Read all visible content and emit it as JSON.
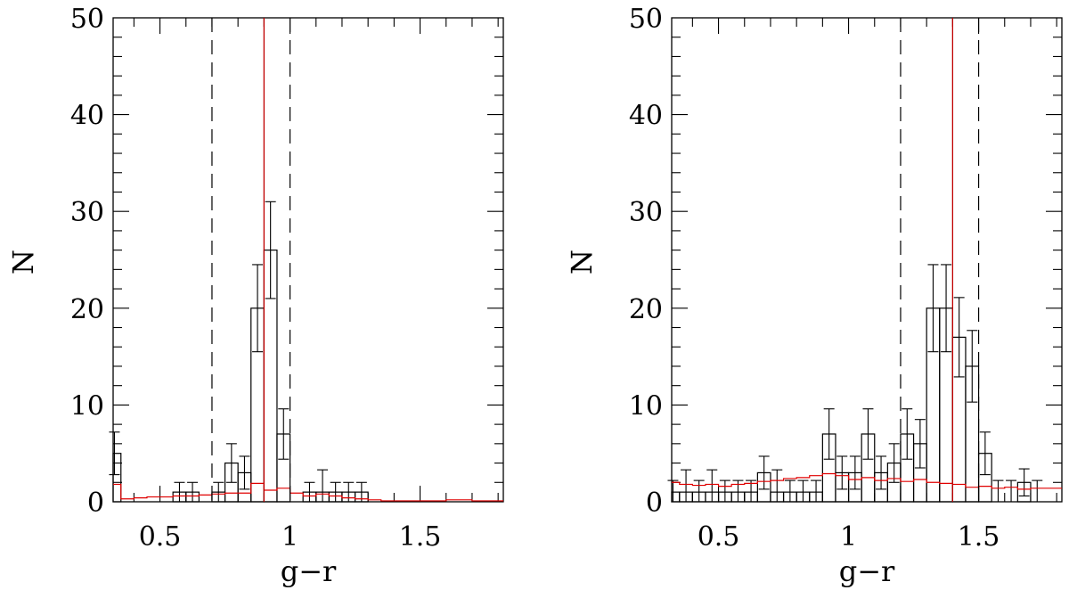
{
  "chart_data": [
    {
      "type": "histogram",
      "xlabel": "g−r",
      "ylabel": "N",
      "xlim": [
        0.32,
        1.82
      ],
      "ylim": [
        0,
        50
      ],
      "xticks": [
        0.5,
        1,
        1.5
      ],
      "xtick_labels": [
        "0.5",
        "1",
        "1.5"
      ],
      "yticks": [
        0,
        10,
        20,
        30,
        40,
        50
      ],
      "ytick_labels": [
        "0",
        "10",
        "20",
        "30",
        "40",
        "50"
      ],
      "bin_width": 0.05,
      "bins": [
        {
          "x0": 0.3,
          "x1": 0.35,
          "n": 5
        },
        {
          "x0": 0.35,
          "x1": 0.4,
          "n": 0
        },
        {
          "x0": 0.4,
          "x1": 0.45,
          "n": 0
        },
        {
          "x0": 0.45,
          "x1": 0.5,
          "n": 0
        },
        {
          "x0": 0.5,
          "x1": 0.55,
          "n": 0
        },
        {
          "x0": 0.55,
          "x1": 0.6,
          "n": 1
        },
        {
          "x0": 0.6,
          "x1": 0.65,
          "n": 1
        },
        {
          "x0": 0.65,
          "x1": 0.7,
          "n": 0
        },
        {
          "x0": 0.7,
          "x1": 0.75,
          "n": 1
        },
        {
          "x0": 0.75,
          "x1": 0.8,
          "n": 4
        },
        {
          "x0": 0.8,
          "x1": 0.85,
          "n": 3
        },
        {
          "x0": 0.85,
          "x1": 0.9,
          "n": 20
        },
        {
          "x0": 0.9,
          "x1": 0.95,
          "n": 26
        },
        {
          "x0": 0.95,
          "x1": 1.0,
          "n": 7
        },
        {
          "x0": 1.0,
          "x1": 1.05,
          "n": 0
        },
        {
          "x0": 1.05,
          "x1": 1.1,
          "n": 1
        },
        {
          "x0": 1.1,
          "x1": 1.15,
          "n": 1
        },
        {
          "x0": 1.15,
          "x1": 1.2,
          "n": 1
        },
        {
          "x0": 1.2,
          "x1": 1.25,
          "n": 1
        },
        {
          "x0": 1.25,
          "x1": 1.3,
          "n": 1
        },
        {
          "x0": 1.3,
          "x1": 1.35,
          "n": 0
        },
        {
          "x0": 1.35,
          "x1": 1.4,
          "n": 0
        }
      ],
      "errors": [
        {
          "x": 0.325,
          "lo": 2.8,
          "hi": 7.2
        },
        {
          "x": 0.575,
          "lo": 0,
          "hi": 2
        },
        {
          "x": 0.625,
          "lo": 0,
          "hi": 2
        },
        {
          "x": 0.725,
          "lo": 0,
          "hi": 2
        },
        {
          "x": 0.775,
          "lo": 2,
          "hi": 6
        },
        {
          "x": 0.825,
          "lo": 1.3,
          "hi": 4.7
        },
        {
          "x": 0.875,
          "lo": 15.5,
          "hi": 24.5
        },
        {
          "x": 0.925,
          "lo": 21,
          "hi": 31
        },
        {
          "x": 0.975,
          "lo": 4.4,
          "hi": 9.6
        },
        {
          "x": 1.075,
          "lo": 0,
          "hi": 2
        },
        {
          "x": 1.125,
          "lo": 0,
          "hi": 3.3
        },
        {
          "x": 1.175,
          "lo": 0,
          "hi": 2
        },
        {
          "x": 1.225,
          "lo": 0,
          "hi": 2
        },
        {
          "x": 1.275,
          "lo": 0,
          "hi": 2
        }
      ],
      "background": {
        "x": [
          0.32,
          0.35,
          0.4,
          0.45,
          0.5,
          0.55,
          0.6,
          0.65,
          0.7,
          0.75,
          0.8,
          0.85,
          0.9,
          0.95,
          1.0,
          1.05,
          1.1,
          1.15,
          1.2,
          1.25,
          1.3,
          1.35,
          1.4,
          1.45,
          1.5,
          1.55,
          1.6,
          1.65,
          1.7,
          1.75,
          1.82
        ],
        "y": [
          1.8,
          0.3,
          0.4,
          0.5,
          0.5,
          0.6,
          0.6,
          0.7,
          0.8,
          0.9,
          0.9,
          1.9,
          1.2,
          1.4,
          0.9,
          0.6,
          0.8,
          0.6,
          0.4,
          0.3,
          0.2,
          0.1,
          0.1,
          0.1,
          0.1,
          0.1,
          0.2,
          0.2,
          0.1,
          0.1,
          0.1
        ]
      },
      "dashed_lines": [
        0.7,
        1.0
      ],
      "peak_line": 0.9
    },
    {
      "type": "histogram",
      "xlabel": "g−r",
      "ylabel": "N",
      "xlim": [
        0.32,
        1.82
      ],
      "ylim": [
        0,
        50
      ],
      "xticks": [
        0.5,
        1,
        1.5
      ],
      "xtick_labels": [
        "0.5",
        "1",
        "1.5"
      ],
      "yticks": [
        0,
        10,
        20,
        30,
        40,
        50
      ],
      "ytick_labels": [
        "0",
        "10",
        "20",
        "30",
        "40",
        "50"
      ],
      "bin_width": 0.05,
      "bins": [
        {
          "x0": 0.3,
          "x1": 0.35,
          "n": 1
        },
        {
          "x0": 0.35,
          "x1": 0.4,
          "n": 1
        },
        {
          "x0": 0.4,
          "x1": 0.45,
          "n": 1
        },
        {
          "x0": 0.45,
          "x1": 0.5,
          "n": 1
        },
        {
          "x0": 0.5,
          "x1": 0.55,
          "n": 1
        },
        {
          "x0": 0.55,
          "x1": 0.6,
          "n": 1
        },
        {
          "x0": 0.6,
          "x1": 0.65,
          "n": 1
        },
        {
          "x0": 0.65,
          "x1": 0.7,
          "n": 3
        },
        {
          "x0": 0.7,
          "x1": 0.75,
          "n": 1
        },
        {
          "x0": 0.75,
          "x1": 0.8,
          "n": 1
        },
        {
          "x0": 0.8,
          "x1": 0.85,
          "n": 1
        },
        {
          "x0": 0.85,
          "x1": 0.9,
          "n": 1
        },
        {
          "x0": 0.9,
          "x1": 0.95,
          "n": 7
        },
        {
          "x0": 0.95,
          "x1": 1.0,
          "n": 3
        },
        {
          "x0": 1.0,
          "x1": 1.05,
          "n": 3
        },
        {
          "x0": 1.05,
          "x1": 1.1,
          "n": 7
        },
        {
          "x0": 1.1,
          "x1": 1.15,
          "n": 3
        },
        {
          "x0": 1.15,
          "x1": 1.2,
          "n": 4
        },
        {
          "x0": 1.2,
          "x1": 1.25,
          "n": 7
        },
        {
          "x0": 1.25,
          "x1": 1.3,
          "n": 6
        },
        {
          "x0": 1.3,
          "x1": 1.35,
          "n": 20
        },
        {
          "x0": 1.35,
          "x1": 1.4,
          "n": 20
        },
        {
          "x0": 1.4,
          "x1": 1.45,
          "n": 17
        },
        {
          "x0": 1.45,
          "x1": 1.5,
          "n": 14
        },
        {
          "x0": 1.5,
          "x1": 1.55,
          "n": 5
        },
        {
          "x0": 1.55,
          "x1": 1.6,
          "n": 0
        },
        {
          "x0": 1.6,
          "x1": 1.65,
          "n": 0
        },
        {
          "x0": 1.65,
          "x1": 1.7,
          "n": 2
        },
        {
          "x0": 1.7,
          "x1": 1.75,
          "n": 0
        }
      ],
      "errors": [
        {
          "x": 0.325,
          "lo": 0,
          "hi": 2.2
        },
        {
          "x": 0.375,
          "lo": 0,
          "hi": 3.3
        },
        {
          "x": 0.425,
          "lo": 0,
          "hi": 2.2
        },
        {
          "x": 0.475,
          "lo": 0,
          "hi": 3.3
        },
        {
          "x": 0.525,
          "lo": 0,
          "hi": 2.2
        },
        {
          "x": 0.575,
          "lo": 0,
          "hi": 2.2
        },
        {
          "x": 0.625,
          "lo": 0,
          "hi": 2.2
        },
        {
          "x": 0.675,
          "lo": 1.3,
          "hi": 4.7
        },
        {
          "x": 0.725,
          "lo": 0,
          "hi": 3.3
        },
        {
          "x": 0.775,
          "lo": 0,
          "hi": 2.2
        },
        {
          "x": 0.825,
          "lo": 0,
          "hi": 2.2
        },
        {
          "x": 0.875,
          "lo": 0,
          "hi": 2.2
        },
        {
          "x": 0.925,
          "lo": 4.4,
          "hi": 9.6
        },
        {
          "x": 0.975,
          "lo": 1.3,
          "hi": 4.7
        },
        {
          "x": 1.025,
          "lo": 1.3,
          "hi": 4.7
        },
        {
          "x": 1.075,
          "lo": 4.4,
          "hi": 9.6
        },
        {
          "x": 1.125,
          "lo": 1.3,
          "hi": 4.7
        },
        {
          "x": 1.175,
          "lo": 2,
          "hi": 6
        },
        {
          "x": 1.225,
          "lo": 4.4,
          "hi": 9.6
        },
        {
          "x": 1.275,
          "lo": 3.5,
          "hi": 8.5
        },
        {
          "x": 1.325,
          "lo": 15.5,
          "hi": 24.5
        },
        {
          "x": 1.375,
          "lo": 15.5,
          "hi": 24.5
        },
        {
          "x": 1.425,
          "lo": 12.9,
          "hi": 21.1
        },
        {
          "x": 1.475,
          "lo": 10.3,
          "hi": 17.7
        },
        {
          "x": 1.525,
          "lo": 2.8,
          "hi": 7.2
        },
        {
          "x": 1.575,
          "lo": 0,
          "hi": 2.2
        },
        {
          "x": 1.625,
          "lo": 0,
          "hi": 2.2
        },
        {
          "x": 1.675,
          "lo": 0.6,
          "hi": 3.4
        },
        {
          "x": 1.725,
          "lo": 0,
          "hi": 2.2
        }
      ],
      "background": {
        "x": [
          0.32,
          0.35,
          0.4,
          0.45,
          0.5,
          0.55,
          0.6,
          0.65,
          0.7,
          0.75,
          0.8,
          0.85,
          0.9,
          0.95,
          1.0,
          1.05,
          1.1,
          1.15,
          1.2,
          1.25,
          1.3,
          1.35,
          1.4,
          1.45,
          1.5,
          1.55,
          1.6,
          1.65,
          1.7,
          1.75,
          1.82
        ],
        "y": [
          2.0,
          1.8,
          1.7,
          1.8,
          1.6,
          1.8,
          1.9,
          2.1,
          2.2,
          2.4,
          2.5,
          2.7,
          2.9,
          2.7,
          2.3,
          2.5,
          2.2,
          2.4,
          2.1,
          2.3,
          2.0,
          1.9,
          1.8,
          1.5,
          1.6,
          1.4,
          1.5,
          1.3,
          1.4,
          1.4,
          1.6
        ]
      },
      "dashed_lines": [
        1.2,
        1.5
      ],
      "peak_line": 1.4
    }
  ]
}
